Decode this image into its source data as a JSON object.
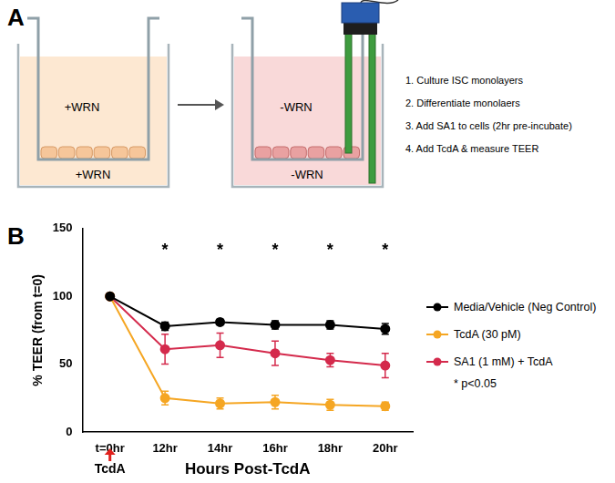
{
  "panel_a": {
    "label": "A",
    "wells": [
      {
        "top_label": "+WRN",
        "bottom_label": "+WRN"
      },
      {
        "top_label": "-WRN",
        "bottom_label": "-WRN"
      }
    ],
    "steps": [
      "1. Culture ISC monolayers",
      "2. Differentiate monolaers",
      "3. Add SA1 to cells (2hr pre-incubate)",
      "4. Add TcdA & measure TEER"
    ]
  },
  "chart_data": {
    "panel_label": "B",
    "type": "line",
    "x_label": "Hours Post-TcdA",
    "y_label": "% TEER (from t=0)",
    "categories": [
      "t=0hr",
      "12hr",
      "14hr",
      "16hr",
      "18hr",
      "20hr"
    ],
    "ylim": [
      0,
      150
    ],
    "yticks": [
      0,
      50,
      100,
      150
    ],
    "grid": false,
    "legend": "right",
    "series": [
      {
        "name": "Media/Vehicle (Neg Control)",
        "color": "#000000",
        "marker": "circle",
        "values": [
          100,
          78,
          81,
          79,
          79,
          76
        ],
        "errors": [
          0,
          3,
          2,
          3,
          3,
          4
        ]
      },
      {
        "name": "TcdA (30 pM)",
        "color": "#f5a623",
        "marker": "circle",
        "values": [
          100,
          25,
          21,
          22,
          20,
          19
        ],
        "errors": [
          0,
          5,
          4,
          5,
          4,
          3
        ]
      },
      {
        "name": "SA1 (1 mM) + TcdA",
        "color": "#d42a4c",
        "marker": "circle",
        "values": [
          100,
          61,
          64,
          58,
          53,
          49
        ],
        "errors": [
          0,
          11,
          9,
          9,
          5,
          9
        ]
      }
    ],
    "significance": {
      "marker": "*",
      "categories": [
        "12hr",
        "14hr",
        "16hr",
        "18hr",
        "20hr"
      ],
      "note": "* p<0.05"
    },
    "treatment": {
      "label": "TcdA",
      "at": "t=0hr"
    }
  }
}
